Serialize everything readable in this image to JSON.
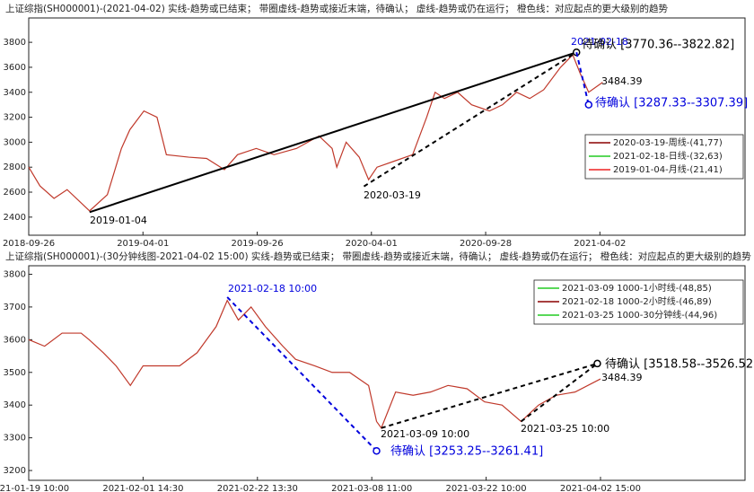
{
  "chart_data": [
    {
      "type": "line",
      "title": "上证综指(SH000001)-(2021-04-02)  实线-趋势或已结束；  带圈虚线-趋势或接近末端，待确认；  虚线-趋势或仍在运行；  橙色线：对应起点的更大级别的趋势",
      "xlim": [
        0,
        765
      ],
      "ylim": [
        2255,
        3995
      ],
      "xticks": [
        {
          "value": 0,
          "label": "2018-09-26"
        },
        {
          "value": 122,
          "label": "2019-04-01"
        },
        {
          "value": 244,
          "label": "2019-09-26"
        },
        {
          "value": 366,
          "label": "2020-04-01"
        },
        {
          "value": 488,
          "label": "2020-09-28"
        },
        {
          "value": 610,
          "label": "2021-04-02"
        }
      ],
      "yticks": [
        2400,
        2600,
        2800,
        3000,
        3200,
        3400,
        3600,
        3800
      ],
      "series": [
        {
          "color": "#c0392b",
          "x": [
            0,
            12,
            27,
            41,
            65,
            84,
            99,
            108,
            123,
            137,
            147,
            171,
            190,
            209,
            223,
            243,
            262,
            286,
            310,
            324,
            329,
            339,
            353,
            363,
            372,
            391,
            410,
            425,
            434,
            444,
            458,
            473,
            492,
            506,
            521,
            535,
            550,
            568,
            581,
            589,
            598,
            613
          ],
          "values": [
            2800,
            2650,
            2550,
            2620,
            2450,
            2580,
            2950,
            3100,
            3250,
            3200,
            2900,
            2880,
            2870,
            2780,
            2900,
            2950,
            2900,
            2950,
            3050,
            2950,
            2800,
            3000,
            2880,
            2700,
            2800,
            2850,
            2900,
            3200,
            3400,
            3350,
            3400,
            3300,
            3250,
            3300,
            3400,
            3350,
            3420,
            3600,
            3700,
            3550,
            3400,
            3480
          ]
        }
      ],
      "lines": [
        {
          "x": [
            65,
            585
          ],
          "y": [
            2440,
            3720
          ],
          "color": "#000000",
          "dashed": false,
          "circle": false
        },
        {
          "x": [
            358,
            585
          ],
          "y": [
            2646,
            3720
          ],
          "color": "#000000",
          "dashed": true,
          "circle": true
        },
        {
          "x": [
            585,
            598
          ],
          "y": [
            3720,
            3300
          ],
          "color": "#0000dd",
          "dashed": true,
          "circle": true
        }
      ],
      "annotations": [
        {
          "text": "2019-01-04",
          "color": "#000000"
        },
        {
          "text": "2020-03-19",
          "color": "#000000"
        },
        {
          "text": "2021-02-18",
          "color": "#0000dd"
        },
        {
          "text": "3484.39",
          "color": "#000000"
        },
        {
          "text": "待确认 [3770.36--3822.82]",
          "color": "#000000"
        },
        {
          "text": "待确认 [3287.33--3307.39]",
          "color": "#0000dd"
        }
      ],
      "legend": [
        {
          "name": "2020-03-19-周线-(41,77)",
          "color": "#8b0000"
        },
        {
          "name": "2021-02-18-日线-(32,63)",
          "color": "#22cc22"
        },
        {
          "name": "2019-01-04-月线-(21,41)",
          "color": "#ee2222"
        }
      ]
    },
    {
      "type": "line",
      "title": "上证综指(SH000001)-(30分钟线图-2021-04-02 15:00)  实线-趋势或已结束；  带圈虚线-趋势或接近末端，待确认；  虚线-趋势或仍在运行；  橙色线：对应起点的更大级别的趋势",
      "xlim": [
        0,
        451
      ],
      "ylim": [
        3170,
        3826
      ],
      "xticks": [
        {
          "value": 0,
          "label": "2021-01-19 10:00"
        },
        {
          "value": 72,
          "label": "2021-02-01 14:30"
        },
        {
          "value": 144,
          "label": "2021-02-22 13:30"
        },
        {
          "value": 216,
          "label": "2021-03-08 11:00"
        },
        {
          "value": 288,
          "label": "2021-03-22 10:00"
        },
        {
          "value": 360,
          "label": "2021-04-02 15:00"
        }
      ],
      "yticks": [
        3200,
        3300,
        3400,
        3500,
        3600,
        3700,
        3800
      ],
      "series": [
        {
          "color": "#c0392b",
          "x": [
            0,
            10,
            21,
            33,
            38,
            47,
            55,
            64,
            72,
            84,
            95,
            106,
            118,
            125,
            132,
            140,
            149,
            160,
            168,
            180,
            191,
            202,
            214,
            219,
            222,
            231,
            242,
            253,
            264,
            276,
            287,
            298,
            310,
            321,
            332,
            344,
            360
          ],
          "values": [
            3600,
            3580,
            3620,
            3620,
            3600,
            3560,
            3520,
            3460,
            3520,
            3520,
            3520,
            3560,
            3640,
            3720,
            3660,
            3700,
            3640,
            3580,
            3540,
            3520,
            3500,
            3500,
            3460,
            3350,
            3330,
            3440,
            3430,
            3440,
            3460,
            3450,
            3410,
            3400,
            3350,
            3400,
            3430,
            3440,
            3480
          ]
        }
      ],
      "lines": [
        {
          "x": [
            125,
            219
          ],
          "y": [
            3730,
            3260
          ],
          "color": "#0000dd",
          "dashed": true,
          "circle": true
        },
        {
          "x": [
            222,
            358
          ],
          "y": [
            3330,
            3527
          ],
          "color": "#000000",
          "dashed": true,
          "circle": true
        },
        {
          "x": [
            310,
            358
          ],
          "y": [
            3350,
            3527
          ],
          "color": "#000000",
          "dashed": true,
          "circle": false
        }
      ],
      "annotations": [
        {
          "text": "2021-02-18 10:00",
          "color": "#0000dd"
        },
        {
          "text": "2021-03-09 10:00",
          "color": "#000000"
        },
        {
          "text": "2021-03-25 10:00",
          "color": "#000000"
        },
        {
          "text": "3484.39",
          "color": "#000000"
        },
        {
          "text": "待确认 [3518.58--3526.52]",
          "color": "#000000"
        },
        {
          "text": "待确认 [3253.25--3261.41]",
          "color": "#0000dd"
        }
      ],
      "legend": [
        {
          "name": "2021-03-09 1000-1小时线-(48,85)",
          "color": "#22cc22"
        },
        {
          "name": "2021-02-18 1000-2小时线-(46,89)",
          "color": "#8b0000"
        },
        {
          "name": "2021-03-25 1000-30分钟线-(44,96)",
          "color": "#22cc22"
        }
      ]
    }
  ]
}
